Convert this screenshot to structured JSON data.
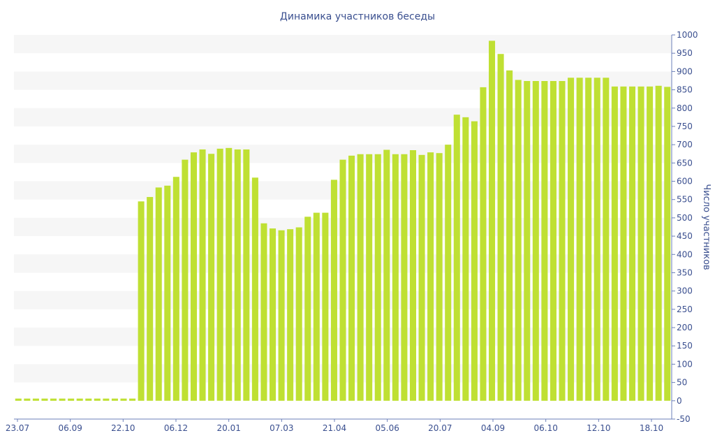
{
  "chart_data": {
    "type": "bar",
    "title": "Динамика участников беседы",
    "xlabel": "",
    "ylabel": "Число участников",
    "ylim": [
      -50,
      1000
    ],
    "ytick_step": 50,
    "x_tick_labels": [
      "23.07",
      "06.09",
      "22.10",
      "06.12",
      "20.01",
      "07.03",
      "21.04",
      "05.06",
      "20.07",
      "04.09",
      "06.10",
      "12.10",
      "18.10"
    ],
    "y_axis_position": "right",
    "grid": "alternating horizontal bands",
    "bar_color": "#bfe033",
    "band_color": "#f6f6f6",
    "text_color": "#3a4f8f",
    "values": [
      6,
      6,
      6,
      6,
      6,
      6,
      6,
      6,
      6,
      6,
      6,
      6,
      6,
      6,
      545,
      557,
      583,
      588,
      612,
      659,
      679,
      687,
      675,
      689,
      691,
      687,
      687,
      610,
      485,
      471,
      466,
      469,
      474,
      503,
      514,
      514,
      604,
      659,
      670,
      674,
      674,
      674,
      686,
      674,
      674,
      685,
      672,
      679,
      677,
      700,
      782,
      775,
      764,
      857,
      984,
      948,
      903,
      877,
      874,
      874,
      874,
      874,
      874,
      883,
      883,
      883,
      883,
      883,
      859,
      859,
      859,
      859,
      859,
      861,
      858
    ]
  }
}
